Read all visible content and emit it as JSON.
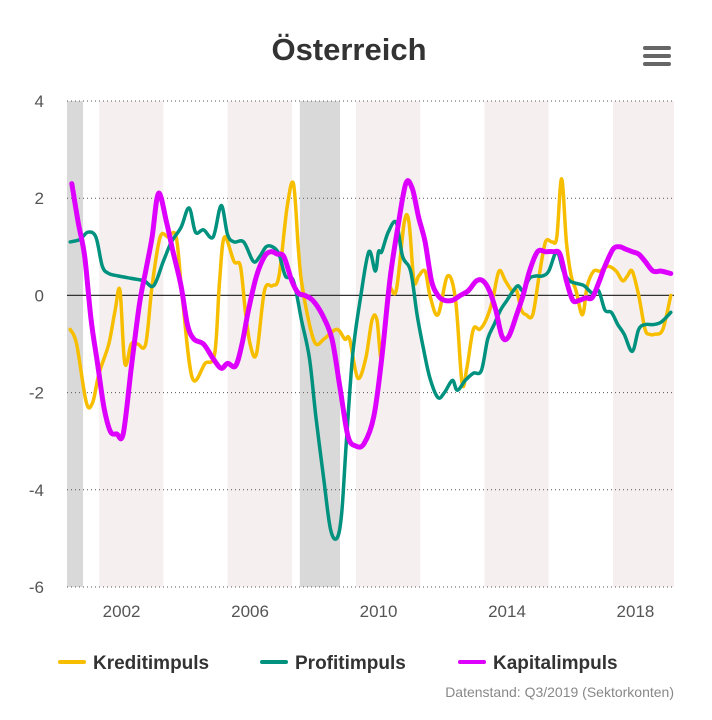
{
  "colors": {
    "kredit": "#f7be00",
    "profit": "#00927f",
    "kapital": "#dd00ff",
    "recession": "#d9d9d9",
    "band": "#f5f0ef",
    "grid": "#555555",
    "zero": "#333333"
  },
  "menu_icon": "hamburger-menu-icon",
  "credit": "Datenstand: Q3/2019 (Sektorkonten)",
  "chart_data": {
    "type": "line",
    "title": "Österreich",
    "xlim": [
      2000.3,
      2019.2
    ],
    "ylim": [
      -6,
      4
    ],
    "x_ticks": [
      2002,
      2006,
      2010,
      2014,
      2018
    ],
    "x_tick_labels": [
      "2002",
      "2006",
      "2010",
      "2014",
      "2018"
    ],
    "y_ticks": [
      4,
      2,
      0,
      -2,
      -4,
      -6
    ],
    "y_tick_labels": [
      "4",
      "2",
      "0",
      "-2",
      "-4",
      "-6"
    ],
    "zero_line": true,
    "grid": "horizontal dotted",
    "recession_periods": [
      [
        2000.3,
        2000.8
      ],
      [
        2007.55,
        2008.8
      ]
    ],
    "shaded_periods": [
      [
        2001.3,
        2003.3
      ],
      [
        2005.3,
        2007.3
      ],
      [
        2009.3,
        2011.3
      ],
      [
        2013.3,
        2015.3
      ],
      [
        2017.3,
        2019.2
      ]
    ],
    "legend_position": "bottom",
    "series": [
      {
        "name": "Kreditimpuls",
        "color": "#f7be00",
        "x": [
          2000.4,
          2000.6,
          2000.9,
          2001.1,
          2001.3,
          2001.6,
          2001.8,
          2001.95,
          2002.1,
          2002.3,
          2002.5,
          2002.75,
          2002.95,
          2003.2,
          2003.45,
          2003.7,
          2003.9,
          2004.2,
          2004.6,
          2004.9,
          2005.05,
          2005.2,
          2005.5,
          2005.7,
          2005.85,
          2006.0,
          2006.2,
          2006.45,
          2006.7,
          2006.9,
          2007.15,
          2007.35,
          2007.5,
          2007.6,
          2007.85,
          2008.05,
          2008.3,
          2008.7,
          2008.95,
          2009.1,
          2009.35,
          2009.6,
          2009.8,
          2009.95,
          2010.1,
          2010.3,
          2010.55,
          2010.8,
          2010.95,
          2011.1,
          2011.25,
          2011.45,
          2011.6,
          2011.85,
          2012.15,
          2012.4,
          2012.6,
          2012.75,
          2012.95,
          2013.15,
          2013.35,
          2013.55,
          2013.75,
          2013.95,
          2014.15,
          2014.3,
          2014.45,
          2014.6,
          2014.8,
          2015.0,
          2015.2,
          2015.4,
          2015.55,
          2015.7,
          2015.85,
          2016.0,
          2016.15,
          2016.35,
          2016.5,
          2016.7,
          2016.9,
          2017.15,
          2017.4,
          2017.6,
          2017.75,
          2017.9,
          2018.1,
          2018.3,
          2018.45,
          2018.6,
          2018.85,
          2019.1
        ],
        "y": [
          -0.7,
          -1.0,
          -2.2,
          -2.2,
          -1.6,
          -1.0,
          -0.3,
          0.1,
          -1.4,
          -1.0,
          -1.0,
          -1.0,
          0.2,
          1.2,
          1.2,
          1.2,
          -0.1,
          -1.7,
          -1.4,
          -1.2,
          0.3,
          1.2,
          0.7,
          0.6,
          -0.3,
          -1.0,
          -1.2,
          0.1,
          0.2,
          0.4,
          1.8,
          2.3,
          1.0,
          0.3,
          -0.6,
          -1.0,
          -0.9,
          -0.7,
          -0.9,
          -0.9,
          -1.7,
          -1.3,
          -0.5,
          -0.5,
          -1.3,
          0.1,
          0.1,
          1.5,
          1.5,
          0.3,
          0.4,
          0.5,
          0.0,
          -0.4,
          0.4,
          -0.1,
          -1.8,
          -1.5,
          -0.7,
          -0.7,
          -0.5,
          -0.1,
          0.5,
          0.3,
          0.1,
          0.1,
          -0.3,
          -0.4,
          -0.4,
          0.4,
          1.1,
          1.1,
          1.2,
          2.4,
          1.1,
          0.4,
          0.1,
          -0.4,
          0.2,
          0.5,
          0.5,
          0.6,
          0.5,
          0.3,
          0.4,
          0.5,
          0.0,
          -0.7,
          -0.8,
          -0.8,
          -0.7,
          0.0
        ]
      },
      {
        "name": "Profitimpuls",
        "color": "#00927f",
        "x": [
          2000.4,
          2000.7,
          2000.95,
          2001.2,
          2001.4,
          2001.6,
          2001.9,
          2002.3,
          2002.7,
          2003.0,
          2003.3,
          2003.55,
          2003.85,
          2004.1,
          2004.3,
          2004.55,
          2004.85,
          2005.1,
          2005.3,
          2005.5,
          2005.8,
          2006.1,
          2006.3,
          2006.5,
          2006.7,
          2006.9,
          2007.1,
          2007.35,
          2007.6,
          2007.85,
          2008.05,
          2008.3,
          2008.5,
          2008.7,
          2008.85,
          2009.0,
          2009.2,
          2009.45,
          2009.7,
          2009.9,
          2010.0,
          2010.1,
          2010.3,
          2010.55,
          2010.75,
          2011.0,
          2011.2,
          2011.4,
          2011.6,
          2011.85,
          2012.05,
          2012.3,
          2012.45,
          2012.7,
          2012.95,
          2013.2,
          2013.4,
          2013.6,
          2013.8,
          2014.0,
          2014.2,
          2014.35,
          2014.5,
          2014.7,
          2014.9,
          2015.1,
          2015.3,
          2015.55,
          2015.75,
          2015.95,
          2016.15,
          2016.4,
          2016.65,
          2016.85,
          2017.05,
          2017.25,
          2017.45,
          2017.65,
          2017.9,
          2018.1,
          2018.3,
          2018.55,
          2018.8,
          2019.1
        ],
        "y": [
          1.1,
          1.15,
          1.3,
          1.2,
          0.6,
          0.45,
          0.4,
          0.35,
          0.3,
          0.2,
          0.7,
          1.1,
          1.4,
          1.8,
          1.3,
          1.35,
          1.2,
          1.85,
          1.25,
          1.1,
          1.1,
          0.7,
          0.8,
          1.0,
          1.0,
          0.85,
          0.4,
          0.3,
          -0.5,
          -1.3,
          -2.5,
          -3.8,
          -4.8,
          -5.0,
          -4.5,
          -3.0,
          -1.2,
          0.0,
          0.9,
          0.5,
          0.9,
          0.9,
          1.3,
          1.5,
          0.8,
          0.5,
          -0.4,
          -1.1,
          -1.7,
          -2.1,
          -2.0,
          -1.75,
          -1.95,
          -1.75,
          -1.6,
          -1.55,
          -0.9,
          -0.6,
          -0.3,
          -0.1,
          0.1,
          0.2,
          0.1,
          0.35,
          0.4,
          0.4,
          0.5,
          0.9,
          0.5,
          0.3,
          0.25,
          0.2,
          0.05,
          0.1,
          -0.3,
          -0.35,
          -0.6,
          -0.8,
          -1.15,
          -0.7,
          -0.6,
          -0.6,
          -0.55,
          -0.35
        ]
      },
      {
        "name": "Kapitalimpuls",
        "color": "#dd00ff",
        "x": [
          2000.45,
          2000.65,
          2000.85,
          2001.05,
          2001.25,
          2001.45,
          2001.65,
          2001.85,
          2002.05,
          2002.3,
          2002.55,
          2002.75,
          2002.95,
          2003.15,
          2003.4,
          2003.6,
          2003.85,
          2004.05,
          2004.25,
          2004.55,
          2004.85,
          2005.1,
          2005.3,
          2005.55,
          2005.75,
          2005.95,
          2006.2,
          2006.45,
          2006.65,
          2006.85,
          2007.05,
          2007.3,
          2007.5,
          2007.7,
          2007.95,
          2008.25,
          2008.55,
          2008.8,
          2009.05,
          2009.3,
          2009.55,
          2009.85,
          2010.1,
          2010.35,
          2010.6,
          2010.85,
          2011.05,
          2011.25,
          2011.45,
          2011.65,
          2011.85,
          2012.05,
          2012.3,
          2012.55,
          2012.8,
          2013.05,
          2013.25,
          2013.45,
          2013.65,
          2013.85,
          2014.05,
          2014.3,
          2014.5,
          2014.7,
          2014.95,
          2015.2,
          2015.45,
          2015.65,
          2015.85,
          2016.05,
          2016.25,
          2016.45,
          2016.65,
          2016.85,
          2017.05,
          2017.3,
          2017.5,
          2017.7,
          2017.9,
          2018.1,
          2018.3,
          2018.55,
          2018.8,
          2019.1
        ],
        "y": [
          2.3,
          1.5,
          0.8,
          -0.5,
          -1.4,
          -2.3,
          -2.8,
          -2.85,
          -2.85,
          -1.5,
          -0.2,
          0.5,
          1.2,
          2.1,
          1.5,
          0.9,
          0.2,
          -0.6,
          -0.9,
          -1.0,
          -1.3,
          -1.5,
          -1.4,
          -1.45,
          -1.0,
          -0.3,
          0.4,
          0.8,
          0.9,
          0.85,
          0.8,
          0.3,
          0.05,
          0.0,
          -0.1,
          -0.4,
          -0.9,
          -1.9,
          -2.9,
          -3.1,
          -3.05,
          -2.5,
          -1.3,
          0.3,
          1.4,
          2.3,
          2.2,
          1.6,
          1.1,
          0.3,
          0.0,
          -0.1,
          -0.1,
          0.0,
          0.1,
          0.3,
          0.3,
          0.1,
          -0.3,
          -0.85,
          -0.85,
          -0.4,
          0.0,
          0.5,
          0.9,
          0.9,
          0.9,
          0.85,
          0.3,
          -0.1,
          -0.1,
          -0.05,
          -0.05,
          0.25,
          0.6,
          0.95,
          1.0,
          0.95,
          0.9,
          0.85,
          0.7,
          0.5,
          0.5,
          0.45
        ]
      }
    ]
  }
}
